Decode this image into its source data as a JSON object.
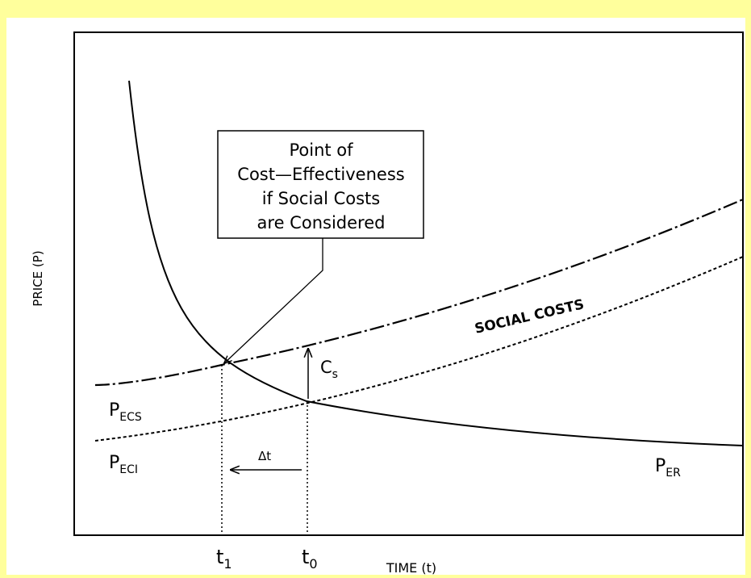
{
  "y_axis_label": "PRICE (P)",
  "x_axis_label": "TIME (t)",
  "x_markers": [
    {
      "main": "t",
      "sub": "1"
    },
    {
      "main": "t",
      "sub": "0"
    }
  ],
  "callout": {
    "lines": [
      "Point of",
      "Cost—Effectiveness",
      "if Social Costs",
      "are Considered"
    ]
  },
  "band_label": "SOCIAL COSTS",
  "cost_label": {
    "main": "C",
    "sub": "s"
  },
  "delta_label": "Δt",
  "curves": [
    {
      "main": "P",
      "sub": "ECS"
    },
    {
      "main": "P",
      "sub": "ECI"
    },
    {
      "main": "P",
      "sub": "ER"
    }
  ]
}
